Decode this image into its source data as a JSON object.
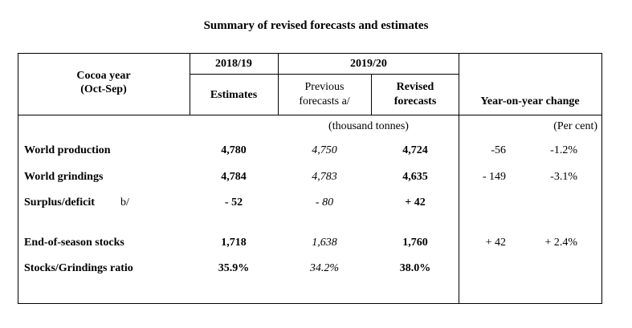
{
  "title": "Summary of revised forecasts and estimates",
  "header": {
    "cocoa_year_line1": "Cocoa year",
    "cocoa_year_line2": "(Oct-Sep)",
    "season_prev": "2018/19",
    "season_curr": "2019/20",
    "estimates": "Estimates",
    "previous_line1": "Previous",
    "previous_line2": "forecasts a/",
    "revised_line1": "Revised",
    "revised_line2": "forecasts",
    "yoy": "Year-on-year change"
  },
  "units": {
    "tonnes": "(thousand tonnes)",
    "percent": "(Per cent)"
  },
  "rows": [
    {
      "label": "World production",
      "estimates": "4,780",
      "previous": "4,750",
      "revised": "4,724",
      "change_abs": "-56",
      "change_pct": "-1.2%"
    },
    {
      "label": "World grindings",
      "estimates": "4,784",
      "previous": "4,783",
      "revised": "4,635",
      "change_abs": "- 149",
      "change_pct": "-3.1%"
    },
    {
      "label": "Surplus/deficit",
      "note": "b/",
      "estimates": "- 52",
      "previous": "- 80",
      "revised": "+ 42",
      "change_abs": "",
      "change_pct": ""
    },
    {
      "label": "End-of-season stocks",
      "estimates": "1,718",
      "previous": "1,638",
      "revised": "1,760",
      "change_abs": "+ 42",
      "change_pct": "+ 2.4%"
    },
    {
      "label": "Stocks/Grindings ratio",
      "estimates": "35.9%",
      "previous": "34.2%",
      "revised": "38.0%",
      "change_abs": "",
      "change_pct": ""
    }
  ]
}
